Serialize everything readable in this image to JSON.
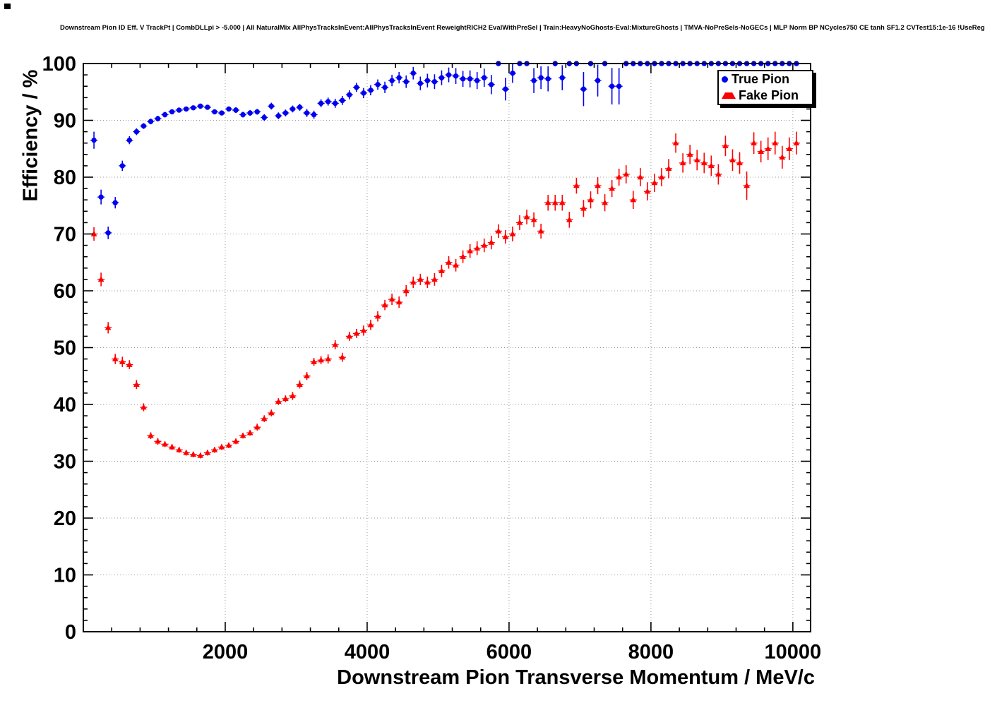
{
  "header": {
    "title": "Downstream Pion ID Eff. V TrackPt | CombDLLpi > -5.000 | All NaturalMix AllPhysTracksInEvent:AllPhysTracksInEvent ReweightRICH2 EvalWithPreSel | Train:HeavyNoGhosts-Eval:MixtureGhosts | TMVA-NoPreSels-NoGECs | MLP Norm BP NCycles750 CE tanh SF1.2 CVTest15:1e-16 !UseReg"
  },
  "chart_data": {
    "type": "scatter",
    "title": "Downstream Pion ID Eff. V TrackPt | CombDLLpi > -5.000 | All NaturalMix AllPhysTracksInEvent:AllPhysTracksInEvent ReweightRICH2 EvalWithPreSel | Train:HeavyNoGhosts-Eval:MixtureGhosts | TMVA-NoPreSels-NoGECs | MLP Norm BP NCycles750 CE tanh SF1.2 CVTest15:1e-16 !UseReg",
    "xlabel": "Downstream Pion Transverse Momentum / MeV/c",
    "ylabel": "Efficiency / %",
    "xlim": [
      0,
      10250
    ],
    "ylim": [
      0,
      100
    ],
    "x_major_tick": 2000,
    "x_minor_tick": 400,
    "y_major_tick": 10,
    "y_minor_tick": 2,
    "grid": "dotted",
    "grid_color": "#999999",
    "legend_position": "top-right",
    "x_bins": {
      "start": 150,
      "step": 100,
      "count": 100,
      "half_width": 50
    },
    "series": [
      {
        "name": "True Pion",
        "marker": "circle",
        "color": "#0000f0",
        "values": [
          86.5,
          76.5,
          70.2,
          75.5,
          82.0,
          86.5,
          88.0,
          89.0,
          89.8,
          90.3,
          91.0,
          91.5,
          91.8,
          92.0,
          92.2,
          92.5,
          92.3,
          91.5,
          91.3,
          92.0,
          91.8,
          91.0,
          91.3,
          91.5,
          90.5,
          92.5,
          90.8,
          91.3,
          92.0,
          92.3,
          91.3,
          91.0,
          93.0,
          93.3,
          93.0,
          93.5,
          94.5,
          95.8,
          94.8,
          95.3,
          96.3,
          95.8,
          97.0,
          97.5,
          96.8,
          98.3,
          96.5,
          97.0,
          96.8,
          97.5,
          98.0,
          97.8,
          97.3,
          97.3,
          97.0,
          97.5,
          96.3,
          100.0,
          95.5,
          98.3,
          100.0,
          100.0,
          97.0,
          97.5,
          97.3,
          100.0,
          97.5,
          100.0,
          100.0,
          95.5,
          100.0,
          97.0,
          100.0,
          96.0,
          96.0,
          100.0,
          100.0,
          100.0,
          100.0,
          100.0,
          100.0,
          100.0,
          100.0,
          100.0,
          100.0,
          100.0,
          100.0,
          100.0,
          100.0,
          100.0,
          100.0,
          100.0,
          100.0,
          100.0,
          100.0,
          100.0,
          100.0,
          100.0,
          100.0,
          100.0
        ],
        "errors": [
          1.5,
          1.3,
          1.1,
          1.0,
          0.9,
          0.7,
          0.6,
          0.5,
          0.5,
          0.5,
          0.5,
          0.4,
          0.4,
          0.4,
          0.4,
          0.4,
          0.4,
          0.4,
          0.4,
          0.4,
          0.5,
          0.5,
          0.5,
          0.5,
          0.6,
          0.6,
          0.6,
          0.6,
          0.6,
          0.6,
          0.7,
          0.7,
          0.7,
          0.7,
          0.8,
          0.8,
          0.8,
          0.8,
          0.9,
          0.9,
          0.9,
          1.0,
          1.0,
          1.0,
          1.1,
          1.1,
          1.2,
          1.2,
          1.3,
          1.3,
          1.3,
          1.4,
          1.4,
          1.5,
          1.5,
          1.6,
          1.7,
          0.2,
          2.0,
          1.7,
          0.2,
          0.2,
          2.2,
          2.0,
          2.2,
          0.5,
          2.2,
          0.5,
          0.5,
          3.0,
          0.5,
          2.8,
          0.5,
          3.2,
          3.2,
          0.5,
          0.5,
          0.5,
          0.5,
          0.5,
          0.3,
          0.3,
          0.3,
          0.3,
          0.3,
          0.3,
          0.3,
          0.3,
          0.3,
          0.3,
          0.3,
          0.3,
          0.3,
          0.3,
          0.3,
          0.3,
          0.3,
          0.3,
          0.3,
          0.3
        ]
      },
      {
        "name": "Fake Pion",
        "marker": "triangle",
        "color": "#ff0000",
        "values": [
          70.0,
          62.0,
          53.5,
          48.0,
          47.5,
          47.0,
          43.5,
          39.5,
          34.5,
          33.5,
          33.0,
          32.5,
          32.0,
          31.5,
          31.2,
          31.0,
          31.5,
          32.0,
          32.5,
          32.8,
          33.5,
          34.5,
          35.0,
          36.0,
          37.5,
          38.5,
          40.5,
          41.0,
          41.5,
          43.5,
          45.0,
          47.5,
          47.8,
          48.0,
          50.5,
          48.3,
          52.0,
          52.5,
          53.0,
          54.0,
          55.5,
          57.5,
          58.5,
          58.0,
          60.0,
          61.5,
          62.0,
          61.5,
          62.0,
          63.5,
          65.0,
          64.5,
          66.0,
          67.0,
          67.5,
          68.0,
          68.5,
          70.5,
          69.5,
          70.0,
          72.0,
          73.0,
          72.5,
          70.5,
          75.5,
          75.5,
          75.5,
          72.5,
          78.5,
          74.5,
          76.0,
          78.5,
          75.5,
          78.0,
          80.0,
          80.5,
          76.0,
          80.0,
          77.5,
          79.0,
          80.0,
          81.5,
          86.0,
          82.5,
          84.0,
          83.0,
          82.5,
          82.0,
          80.5,
          85.5,
          83.0,
          82.5,
          78.5,
          86.0,
          84.5,
          85.0,
          86.0,
          83.5,
          85.0,
          86.0
        ],
        "errors": [
          1.2,
          1.2,
          1.0,
          0.9,
          0.9,
          0.8,
          0.8,
          0.7,
          0.6,
          0.6,
          0.5,
          0.5,
          0.5,
          0.5,
          0.5,
          0.5,
          0.5,
          0.5,
          0.5,
          0.5,
          0.5,
          0.5,
          0.5,
          0.6,
          0.6,
          0.6,
          0.6,
          0.6,
          0.7,
          0.7,
          0.7,
          0.7,
          0.7,
          0.8,
          0.8,
          0.8,
          0.8,
          0.8,
          0.9,
          0.9,
          0.9,
          0.9,
          1.0,
          1.0,
          1.0,
          1.0,
          1.0,
          1.0,
          1.1,
          1.1,
          1.1,
          1.1,
          1.1,
          1.2,
          1.2,
          1.2,
          1.2,
          1.2,
          1.2,
          1.3,
          1.3,
          1.3,
          1.3,
          1.3,
          1.4,
          1.4,
          1.4,
          1.4,
          1.4,
          1.5,
          1.5,
          1.5,
          1.5,
          1.5,
          1.5,
          1.6,
          1.6,
          1.6,
          1.6,
          1.6,
          1.6,
          1.7,
          1.7,
          1.7,
          1.7,
          1.8,
          1.8,
          1.8,
          1.8,
          1.8,
          1.9,
          1.9,
          2.5,
          1.9,
          1.9,
          2.0,
          2.0,
          2.0,
          2.0,
          2.0
        ]
      }
    ]
  }
}
